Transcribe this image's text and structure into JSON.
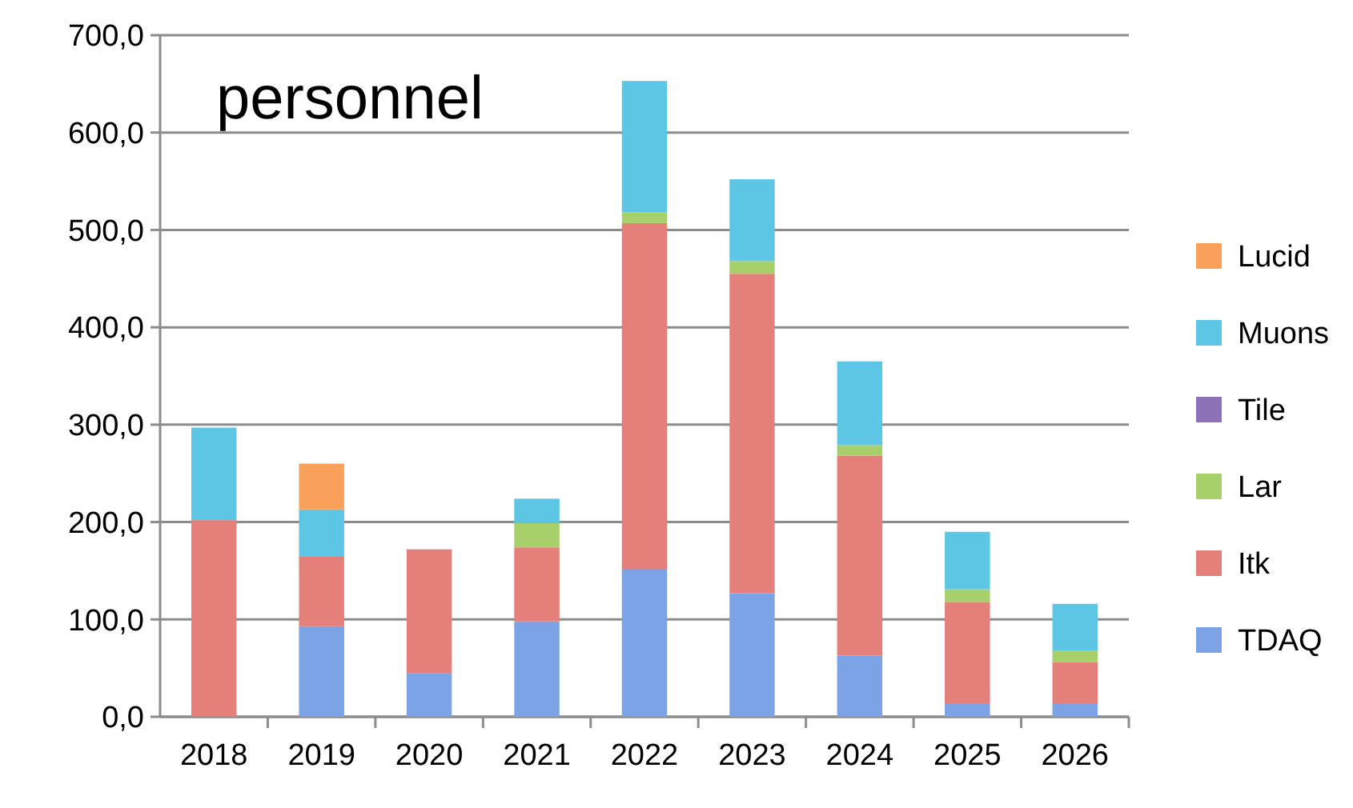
{
  "chart_data": {
    "type": "bar",
    "title": "personnel",
    "stacked": true,
    "categories": [
      "2018",
      "2019",
      "2020",
      "2021",
      "2022",
      "2023",
      "2024",
      "2025",
      "2026"
    ],
    "series": [
      {
        "name": "TDAQ",
        "color": "#7ba3e6",
        "values": [
          0,
          93,
          45,
          98,
          152,
          127,
          63,
          14,
          14
        ]
      },
      {
        "name": "Itk",
        "color": "#e57f7a",
        "values": [
          202,
          72,
          127,
          76,
          355,
          328,
          205,
          104,
          42
        ]
      },
      {
        "name": "Lar",
        "color": "#a8d06a",
        "values": [
          0,
          0,
          0,
          25,
          11,
          13,
          11,
          13,
          12
        ]
      },
      {
        "name": "Tile",
        "color": "#8e72b8",
        "values": [
          0,
          0,
          0,
          0,
          0,
          0,
          0,
          0,
          0
        ]
      },
      {
        "name": "Muons",
        "color": "#5cc6e4",
        "values": [
          95,
          48,
          0,
          25,
          135,
          84,
          86,
          59,
          48
        ]
      },
      {
        "name": "Lucid",
        "color": "#f9a05a",
        "values": [
          0,
          47,
          0,
          0,
          0,
          0,
          0,
          0,
          0
        ]
      }
    ],
    "ylim": [
      0,
      700
    ],
    "yticks": [
      {
        "value": 0,
        "label": "0,0"
      },
      {
        "value": 100,
        "label": "100,0"
      },
      {
        "value": 200,
        "label": "200,0"
      },
      {
        "value": 300,
        "label": "300,0"
      },
      {
        "value": 400,
        "label": "400,0"
      },
      {
        "value": 500,
        "label": "500,0"
      },
      {
        "value": 600,
        "label": "600,0"
      },
      {
        "value": 700,
        "label": "700,0"
      }
    ],
    "grid": "y",
    "legend": "right"
  }
}
